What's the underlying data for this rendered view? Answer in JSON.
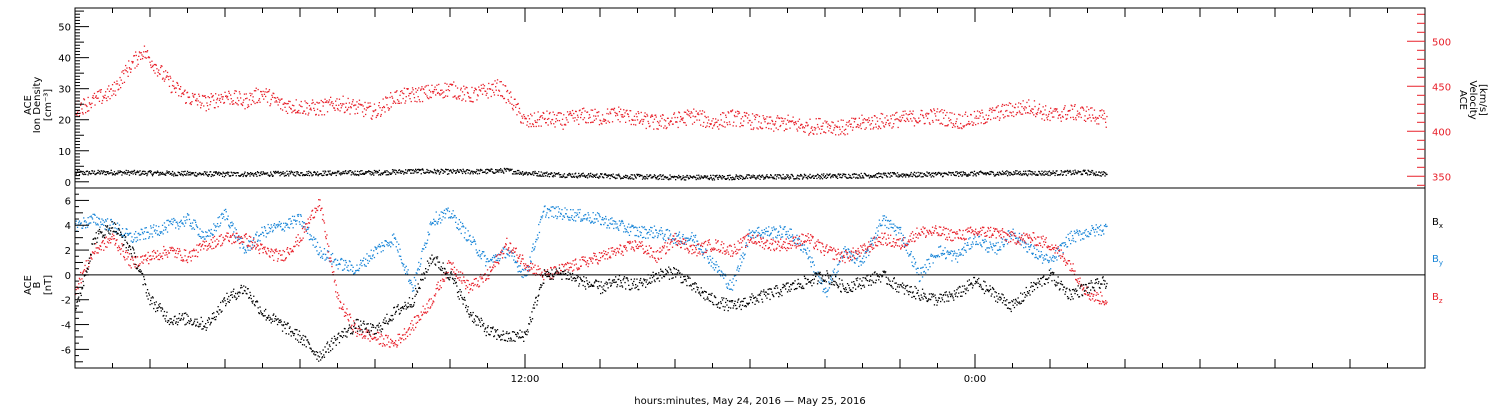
{
  "colors": {
    "black": "#000000",
    "red": "#e8202a",
    "blue": "#1a86d8"
  },
  "chart_data": [
    {
      "type": "scatter",
      "title": "",
      "ylabel": [
        "ACE",
        "Ion Density",
        "[cm⁻³]"
      ],
      "ylim": [
        -2,
        56
      ],
      "yticks": [
        0,
        10,
        20,
        30,
        40,
        50
      ],
      "y2label": [
        "ACE",
        "Velocity",
        "[km/s]"
      ],
      "y2lim": [
        337,
        537
      ],
      "y2ticks": [
        350,
        400,
        450,
        500
      ],
      "series": [
        {
          "color": "#000000",
          "axis": "left",
          "x": [
            0,
            1,
            2,
            3,
            4,
            5,
            6,
            7,
            8,
            9,
            10,
            10.9,
            11.5,
            12,
            13,
            14,
            15,
            16,
            17,
            18,
            19,
            20,
            21,
            22,
            23,
            24,
            25,
            26,
            27,
            27.5
          ],
          "y": [
            3,
            3.2,
            3,
            2.8,
            2.6,
            2.7,
            2.9,
            3,
            3.1,
            3.6,
            3.4,
            3.5,
            3.8,
            3,
            2.4,
            2.1,
            1.8,
            1.6,
            1.6,
            1.7,
            1.8,
            2,
            2.2,
            2.4,
            2.6,
            2.8,
            3,
            3,
            3.2,
            2.6
          ]
        },
        {
          "color": "#e8202a",
          "axis": "right",
          "x": [
            0,
            0.5,
            1,
            1.4,
            1.8,
            2.2,
            2.6,
            3,
            3.5,
            4,
            4.5,
            5,
            5.5,
            6,
            6.5,
            7,
            7.5,
            8,
            8.5,
            9,
            9.5,
            10,
            10.5,
            11,
            11.3,
            11.6,
            12,
            12.5,
            13,
            13.5,
            14,
            14.5,
            15,
            15.5,
            16,
            16.5,
            17,
            17.5,
            18,
            18.5,
            19,
            19.5,
            20,
            20.5,
            21,
            21.5,
            22,
            22.5,
            23,
            23.5,
            24,
            24.5,
            25,
            25.5,
            26,
            26.5,
            27,
            27.5
          ],
          "y": [
            425,
            435,
            445,
            470,
            490,
            470,
            450,
            438,
            432,
            440,
            434,
            443,
            430,
            428,
            426,
            432,
            427,
            422,
            438,
            441,
            444,
            448,
            440,
            446,
            450,
            436,
            410,
            415,
            412,
            418,
            416,
            420,
            414,
            410,
            413,
            418,
            410,
            416,
            412,
            408,
            410,
            405,
            408,
            404,
            410,
            412,
            414,
            416,
            418,
            412,
            414,
            420,
            425,
            428,
            418,
            422,
            420,
            414
          ]
        }
      ]
    },
    {
      "type": "scatter",
      "title": "",
      "ylabel": [
        "ACE",
        "B",
        "[nT]"
      ],
      "ylim": [
        -7.5,
        7
      ],
      "yticks": [
        -6,
        -4,
        -2,
        0,
        2,
        4,
        6
      ],
      "xlabel": "hours:minutes, May 24, 2016 — May 25, 2016",
      "xlim": [
        0,
        36
      ],
      "xticks_major": [
        {
          "at": 12,
          "label": "12:00"
        },
        {
          "at": 24,
          "label": "0:00"
        }
      ],
      "legend": [
        {
          "label": "B",
          "sub": "x",
          "color": "#000000"
        },
        {
          "label": "B",
          "sub": "y",
          "color": "#1a86d8"
        },
        {
          "label": "B",
          "sub": "z",
          "color": "#e8202a"
        }
      ],
      "series": [
        {
          "color": "#000000",
          "x": [
            0,
            0.5,
            1,
            1.5,
            2,
            2.5,
            3,
            3.5,
            4,
            4.5,
            5,
            5.5,
            6,
            6.5,
            7,
            7.5,
            8,
            8.5,
            9,
            9.5,
            10,
            10.5,
            11,
            11.5,
            12,
            12.5,
            13,
            13.5,
            14,
            14.5,
            15,
            15.5,
            16,
            16.5,
            17,
            17.5,
            18,
            18.5,
            19,
            19.5,
            20,
            20.5,
            21,
            21.5,
            22,
            22.5,
            23,
            23.5,
            24,
            24.5,
            25,
            25.5,
            26,
            26.5,
            27,
            27.5
          ],
          "y": [
            -3,
            3,
            4,
            2,
            -2,
            -3.5,
            -3.5,
            -4,
            -2,
            -1,
            -3,
            -4,
            -5,
            -6.5,
            -5,
            -4,
            -4.5,
            -3,
            -2,
            1.5,
            0,
            -3,
            -4.5,
            -5,
            -4.8,
            0,
            0.2,
            -0.5,
            -1,
            -0.5,
            -0.8,
            0,
            0.3,
            -1,
            -2,
            -2.5,
            -2,
            -1.5,
            -1,
            -0.5,
            0,
            -1,
            -0.5,
            0,
            -1,
            -1.5,
            -2,
            -1.5,
            -0.5,
            -1.5,
            -2.5,
            -1,
            0,
            -1.5,
            -1,
            -0.5
          ]
        },
        {
          "color": "#1a86d8",
          "x": [
            0,
            0.5,
            1,
            1.5,
            2,
            2.5,
            3,
            3.5,
            4,
            4.5,
            5,
            5.5,
            6,
            6.5,
            7,
            7.5,
            8,
            8.5,
            9,
            9.5,
            10,
            10.5,
            11,
            11.5,
            12,
            12.5,
            13,
            13.5,
            14,
            14.5,
            15,
            15.5,
            16,
            16.5,
            17,
            17.5,
            18,
            18.5,
            19,
            19.5,
            20,
            20.5,
            21,
            21.5,
            22,
            22.5,
            23,
            23.5,
            24,
            24.5,
            25,
            25.5,
            26,
            26.5,
            27,
            27.5
          ],
          "y": [
            4,
            4.5,
            4,
            3,
            3.5,
            4,
            4.5,
            3,
            5,
            2,
            3.5,
            4,
            4.5,
            2,
            1,
            0.5,
            2,
            3,
            -1,
            4.5,
            5,
            3,
            1,
            2,
            0,
            5.2,
            5,
            4.8,
            4.5,
            4,
            3.5,
            3.5,
            3,
            3,
            1,
            -1,
            3.5,
            3.5,
            3.5,
            2,
            -1.5,
            2,
            1,
            4.5,
            3.5,
            0,
            2,
            1.5,
            3,
            2,
            3.5,
            2,
            1,
            3,
            3.5,
            3.8
          ]
        },
        {
          "color": "#e8202a",
          "x": [
            0,
            0.5,
            1,
            1.5,
            2,
            2.5,
            3,
            3.5,
            4,
            4.5,
            5,
            5.5,
            6,
            6.5,
            7,
            7.5,
            8,
            8.5,
            9,
            9.5,
            10,
            10.5,
            11,
            11.5,
            12,
            12.5,
            13,
            13.5,
            14,
            14.5,
            15,
            15.5,
            16,
            16.5,
            17,
            17.5,
            18,
            18.5,
            19,
            19.5,
            20,
            20.5,
            21,
            21.5,
            22,
            22.5,
            23,
            23.5,
            24,
            24.5,
            25,
            25.5,
            26,
            26.5,
            27,
            27.5
          ],
          "y": [
            -1,
            2,
            3,
            1,
            1.5,
            2,
            1.5,
            2.5,
            3,
            3,
            2,
            1.5,
            3,
            6,
            -2,
            -4.5,
            -5,
            -5.5,
            -4,
            -2,
            1,
            -1,
            0,
            2.5,
            1,
            0,
            0.5,
            1,
            1.5,
            2,
            2.5,
            1.5,
            3,
            2,
            2.5,
            2,
            3,
            2.5,
            2.5,
            3,
            2,
            1.5,
            2,
            3,
            2.5,
            3.5,
            3.5,
            3.2,
            3.5,
            3.5,
            3,
            3,
            2.5,
            1,
            -1.5,
            -2
          ]
        }
      ]
    }
  ]
}
